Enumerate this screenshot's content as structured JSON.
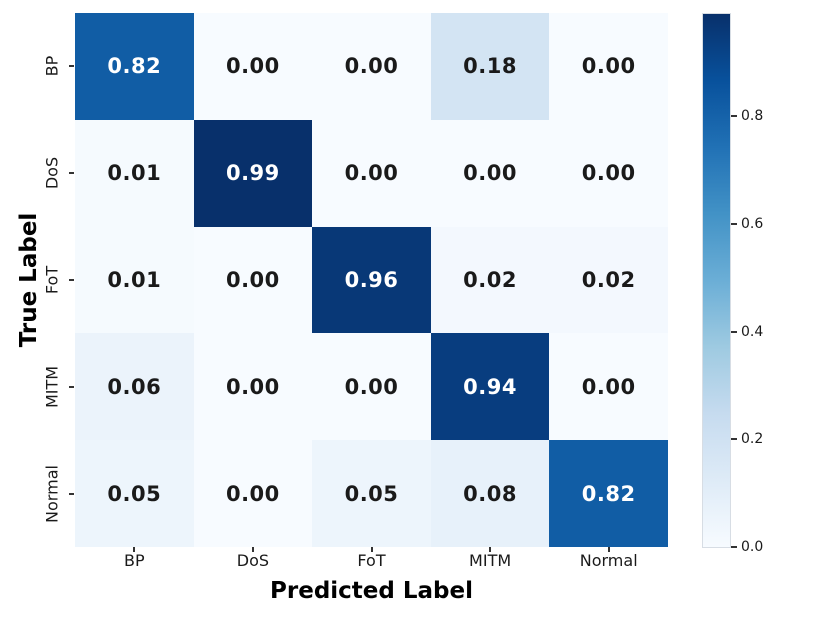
{
  "chart_data": {
    "type": "heatmap",
    "xlabel": "Predicted Label",
    "ylabel": "True Label",
    "x_categories": [
      "BP",
      "DoS",
      "FoT",
      "MITM",
      "Normal"
    ],
    "y_categories": [
      "BP",
      "DoS",
      "FoT",
      "MITM",
      "Normal"
    ],
    "matrix": [
      [
        0.82,
        0.0,
        0.0,
        0.18,
        0.0
      ],
      [
        0.01,
        0.99,
        0.0,
        0.0,
        0.0
      ],
      [
        0.01,
        0.0,
        0.96,
        0.02,
        0.02
      ],
      [
        0.06,
        0.0,
        0.0,
        0.94,
        0.0
      ],
      [
        0.05,
        0.0,
        0.05,
        0.08,
        0.82
      ]
    ],
    "value_decimals": 2,
    "vmin": 0.0,
    "vmax": 0.99,
    "colormap": "Blues",
    "colormap_stops": [
      {
        "pos": 0.0,
        "color": "#f7fbff"
      },
      {
        "pos": 0.125,
        "color": "#deebf7"
      },
      {
        "pos": 0.25,
        "color": "#c6dbef"
      },
      {
        "pos": 0.375,
        "color": "#9ecae1"
      },
      {
        "pos": 0.5,
        "color": "#6baed6"
      },
      {
        "pos": 0.625,
        "color": "#4292c6"
      },
      {
        "pos": 0.75,
        "color": "#2171b5"
      },
      {
        "pos": 0.875,
        "color": "#08519c"
      },
      {
        "pos": 1.0,
        "color": "#08306b"
      }
    ],
    "annotation_color_on_dark": "#ffffff",
    "annotation_color_on_light": "#1a1a1a",
    "colorbar_ticks": [
      "0.0",
      "0.2",
      "0.4",
      "0.6",
      "0.8"
    ],
    "legend_position": "right",
    "grid": false
  }
}
